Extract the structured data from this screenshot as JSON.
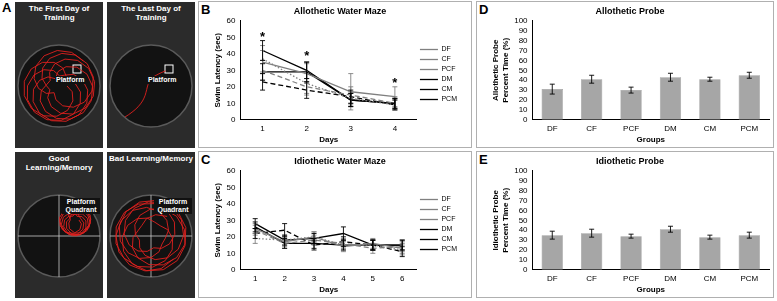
{
  "photos": {
    "letter": "A",
    "images": [
      {
        "title": "The First Day of Training",
        "label": "Platform"
      },
      {
        "title": "The Last Day of Training",
        "label": "Platform"
      },
      {
        "title": "Good Learning/Memory",
        "label": "Platform Quadrant"
      },
      {
        "title": "Bad Learning/Memory",
        "label": "Platform Quadrant"
      }
    ]
  },
  "chart_data": [
    {
      "letter": "B",
      "type": "line",
      "title": "Allothetic Water Maze",
      "x_label": "Days",
      "y_label": "Swim Latency (sec)",
      "categories": [
        1,
        2,
        3,
        4
      ],
      "ylim": [
        0,
        60
      ],
      "yticks": [
        0,
        10,
        20,
        30,
        40,
        50,
        60
      ],
      "grid": false,
      "legend": "right",
      "series": [
        {
          "name": "DF",
          "color": "#808080",
          "line_style": "solid",
          "values": [
            35,
            28,
            17,
            14
          ],
          "errors": [
            7,
            6,
            11,
            6
          ]
        },
        {
          "name": "CF",
          "color": "#808080",
          "line_style": "dashed",
          "values": [
            30,
            20,
            15,
            10
          ],
          "errors": [
            6,
            5,
            5,
            4
          ]
        },
        {
          "name": "PCF",
          "color": "#808080",
          "line_style": "dotted",
          "values": [
            37,
            22,
            13,
            9
          ],
          "errors": [
            8,
            6,
            4,
            3
          ]
        },
        {
          "name": "DM",
          "color": "#000000",
          "line_style": "solid",
          "values": [
            42,
            30,
            12,
            10
          ],
          "errors": [
            6,
            5,
            4,
            3
          ]
        },
        {
          "name": "CM",
          "color": "#000000",
          "line_style": "solid",
          "values": [
            29,
            29,
            12,
            10
          ],
          "errors": [
            5,
            6,
            4,
            3
          ]
        },
        {
          "name": "PCM",
          "color": "#000000",
          "line_style": "dashed",
          "values": [
            23,
            18,
            14,
            9
          ],
          "errors": [
            5,
            5,
            4,
            3
          ]
        }
      ],
      "annotations": [
        {
          "text": "*",
          "x": 1,
          "y": 52
        },
        {
          "text": "*",
          "x": 2,
          "y": 40
        },
        {
          "text": "*",
          "x": 4,
          "y": 24
        }
      ]
    },
    {
      "letter": "C",
      "type": "line",
      "title": "Idiothetic Water Maze",
      "x_label": "Days",
      "y_label": "Swim Latency (sec)",
      "categories": [
        1,
        2,
        3,
        4,
        5,
        6
      ],
      "ylim": [
        0,
        60
      ],
      "yticks": [
        0,
        10,
        20,
        30,
        40,
        50,
        60
      ],
      "grid": false,
      "legend": "right",
      "series": [
        {
          "name": "DF",
          "color": "#808080",
          "line_style": "solid",
          "values": [
            25,
            17,
            20,
            14,
            16,
            13
          ],
          "errors": [
            3,
            3,
            3,
            3,
            3,
            3
          ]
        },
        {
          "name": "CF",
          "color": "#808080",
          "line_style": "dashed",
          "values": [
            24,
            16,
            18,
            16,
            13,
            14
          ],
          "errors": [
            3,
            3,
            3,
            3,
            3,
            3
          ]
        },
        {
          "name": "PCF",
          "color": "#808080",
          "line_style": "dotted",
          "values": [
            19,
            18,
            20,
            15,
            15,
            12
          ],
          "errors": [
            3,
            3,
            3,
            3,
            3,
            3
          ]
        },
        {
          "name": "DM",
          "color": "#000000",
          "line_style": "solid",
          "values": [
            28,
            18,
            19,
            22,
            15,
            15
          ],
          "errors": [
            3,
            3,
            3,
            4,
            3,
            3
          ]
        },
        {
          "name": "CM",
          "color": "#000000",
          "line_style": "solid",
          "values": [
            26,
            16,
            16,
            15,
            15,
            15
          ],
          "errors": [
            3,
            3,
            3,
            3,
            3,
            3
          ]
        },
        {
          "name": "PCM",
          "color": "#000000",
          "line_style": "dashed",
          "values": [
            22,
            24,
            15,
            17,
            15,
            11
          ],
          "errors": [
            3,
            4,
            3,
            3,
            3,
            3
          ]
        }
      ]
    },
    {
      "letter": "D",
      "type": "bar",
      "title": "Allothetic Probe",
      "x_label": "Groups",
      "y_label": "Allothetic Probe Percent Time (%)",
      "categories": [
        "DF",
        "CF",
        "PCF",
        "DM",
        "CM",
        "PCM"
      ],
      "values": [
        31,
        41,
        30,
        43,
        41,
        45
      ],
      "errors": [
        5,
        4,
        3,
        4,
        2,
        3
      ],
      "color": "#a6a6a6",
      "ylim": [
        0,
        100
      ],
      "yticks": [
        0,
        10,
        20,
        30,
        40,
        50,
        60,
        70,
        80,
        90,
        100
      ],
      "grid": false
    },
    {
      "letter": "E",
      "type": "bar",
      "title": "Idiothetic Probe",
      "x_label": "Groups",
      "y_label": "Idiothetic Probe Percent Time (%)",
      "categories": [
        "DF",
        "CF",
        "PCF",
        "DM",
        "CM",
        "PCM"
      ],
      "values": [
        35,
        37,
        34,
        41,
        33,
        35
      ],
      "errors": [
        4,
        4,
        2,
        3,
        2,
        3
      ],
      "color": "#a6a6a6",
      "ylim": [
        0,
        100
      ],
      "yticks": [
        0,
        10,
        20,
        30,
        40,
        50,
        60,
        70,
        80,
        90,
        100
      ],
      "grid": false
    }
  ]
}
